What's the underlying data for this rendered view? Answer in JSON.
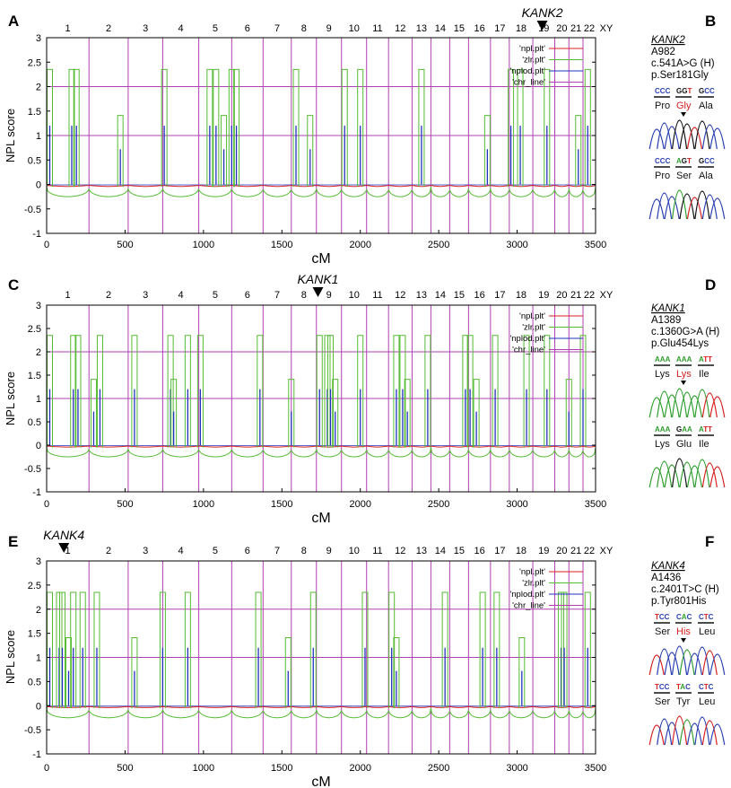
{
  "chart_data": [
    {
      "panel": "A",
      "type": "line",
      "title": "",
      "xlabel": "cM",
      "ylabel": "NPL score",
      "xlim": [
        0,
        3500
      ],
      "ylim": [
        -1,
        3
      ],
      "xticks": [
        "0",
        "500",
        "1000",
        "1500",
        "2000",
        "2500",
        "3000",
        "3500"
      ],
      "yticks": [
        "-1",
        "-0.5",
        "0",
        "0.5",
        "1",
        "1.5",
        "2",
        "2.5",
        "3"
      ],
      "chromosomes": [
        "1",
        "2",
        "3",
        "4",
        "5",
        "6",
        "7",
        "8",
        "9",
        "10",
        "11",
        "12",
        "13",
        "14",
        "15",
        "16",
        "17",
        "18",
        "19",
        "20",
        "21",
        "22",
        "XY"
      ],
      "chromosome_boundaries": [
        0,
        270,
        520,
        740,
        970,
        1180,
        1380,
        1560,
        1720,
        1880,
        2040,
        2180,
        2330,
        2450,
        2570,
        2690,
        2830,
        2950,
        3100,
        3240,
        3330,
        3420,
        3500
      ],
      "peaks": [
        20,
        160,
        190,
        470,
        750,
        1040,
        1080,
        1130,
        1180,
        1210,
        1590,
        1680,
        1900,
        2000,
        2390,
        2810,
        2960,
        3020,
        3190,
        3390,
        3450
      ],
      "peak_values": {
        "zlr": 2.35,
        "npl": 1.2
      },
      "marker": {
        "label": "KANK2",
        "x": 3160
      },
      "legend": [
        "'npl.plt'",
        "'zlr.plt'",
        "'nplod.plt'",
        "'chr_line'"
      ],
      "legend_position": "top-right"
    },
    {
      "panel": "C",
      "type": "line",
      "title": "",
      "xlabel": "cM",
      "ylabel": "NPL score",
      "xlim": [
        0,
        3500
      ],
      "ylim": [
        -1,
        3
      ],
      "xticks": [
        "0",
        "500",
        "1000",
        "1500",
        "2000",
        "2500",
        "3000",
        "3500"
      ],
      "yticks": [
        "-1",
        "-0.5",
        "0",
        "0.5",
        "1",
        "1.5",
        "2",
        "2.5",
        "3"
      ],
      "chromosomes": [
        "1",
        "2",
        "3",
        "4",
        "5",
        "6",
        "7",
        "8",
        "9",
        "10",
        "11",
        "12",
        "13",
        "14",
        "15",
        "16",
        "17",
        "18",
        "19",
        "20",
        "21",
        "22",
        "XY"
      ],
      "chromosome_boundaries": [
        0,
        270,
        520,
        740,
        970,
        1180,
        1380,
        1560,
        1720,
        1880,
        2040,
        2180,
        2330,
        2450,
        2570,
        2690,
        2830,
        2950,
        3100,
        3240,
        3330,
        3420,
        3500
      ],
      "peaks": [
        20,
        170,
        200,
        300,
        340,
        560,
        790,
        810,
        900,
        980,
        1360,
        1560,
        1740,
        1790,
        1810,
        1840,
        2000,
        2230,
        2270,
        2300,
        2430,
        2670,
        2700,
        2740,
        2860,
        3060,
        3190,
        3330,
        3420
      ],
      "peak_values": {
        "zlr": 2.35,
        "npl": 1.2
      },
      "marker": {
        "label": "KANK1",
        "x": 1730
      },
      "legend": [
        "'npl.plt'",
        "'zlr.plt'",
        "'nplod.plt'",
        "'chr_line'"
      ],
      "legend_position": "top-right"
    },
    {
      "panel": "E",
      "type": "line",
      "title": "",
      "xlabel": "cM",
      "ylabel": "NPL score",
      "xlim": [
        0,
        3500
      ],
      "ylim": [
        -1,
        3
      ],
      "xticks": [
        "0",
        "500",
        "1000",
        "1500",
        "2000",
        "2500",
        "3000",
        "3500"
      ],
      "yticks": [
        "-1",
        "-0.5",
        "0",
        "0.5",
        "1",
        "1.5",
        "2",
        "2.5",
        "3"
      ],
      "chromosomes": [
        "1",
        "2",
        "3",
        "4",
        "5",
        "6",
        "7",
        "8",
        "9",
        "10",
        "11",
        "12",
        "13",
        "14",
        "15",
        "16",
        "17",
        "18",
        "19",
        "20",
        "21",
        "22",
        "XY"
      ],
      "chromosome_boundaries": [
        0,
        270,
        520,
        740,
        970,
        1180,
        1380,
        1560,
        1720,
        1880,
        2040,
        2180,
        2330,
        2450,
        2570,
        2690,
        2830,
        2950,
        3100,
        3240,
        3330,
        3420,
        3500
      ],
      "peaks": [
        20,
        80,
        100,
        140,
        170,
        230,
        320,
        560,
        740,
        900,
        1350,
        1540,
        1700,
        2030,
        2200,
        2230,
        2540,
        2780,
        2870,
        3030,
        3280,
        3300,
        3450
      ],
      "peak_values": {
        "zlr": 2.35,
        "npl": 1.2
      },
      "marker": {
        "label": "KANK4",
        "x": 110
      },
      "legend": [
        "'npl.plt'",
        "'zlr.plt'",
        "'nplod.plt'",
        "'chr_line'"
      ],
      "legend_position": "top-right"
    }
  ],
  "mutations": [
    {
      "panel": "B",
      "gene": "KANK2",
      "family": "A982",
      "cdna": "c.541A>G (H)",
      "protein": "p.Ser181Gly",
      "mutant": {
        "codons": [
          "CCC",
          "GGT",
          "GCC"
        ],
        "aminoacids": [
          "Pro",
          "Gly",
          "Ala"
        ],
        "mutated_index": 1
      },
      "normal": {
        "codons": [
          "CCC",
          "AGT",
          "GCC"
        ],
        "aminoacids": [
          "Pro",
          "Ser",
          "Ala"
        ]
      }
    },
    {
      "panel": "D",
      "gene": "KANK1",
      "family": "A1389",
      "cdna": "c.1360G>A (H)",
      "protein": "p.Glu454Lys",
      "mutant": {
        "codons": [
          "AAA",
          "AAA",
          "ATT"
        ],
        "aminoacids": [
          "Lys",
          "Lys",
          "Ile"
        ],
        "mutated_index": 1
      },
      "normal": {
        "codons": [
          "AAA",
          "GAA",
          "ATT"
        ],
        "aminoacids": [
          "Lys",
          "Glu",
          "Ile"
        ]
      }
    },
    {
      "panel": "F",
      "gene": "KANK4",
      "family": "A1436",
      "cdna": "c.2401T>C (H)",
      "protein": "p.Tyr801His",
      "mutant": {
        "codons": [
          "TCC",
          "CAC",
          "CTC"
        ],
        "aminoacids": [
          "Ser",
          "His",
          "Leu"
        ],
        "mutated_index": 1
      },
      "normal": {
        "codons": [
          "TCC",
          "TAC",
          "CTC"
        ],
        "aminoacids": [
          "Ser",
          "Tyr",
          "Leu"
        ]
      }
    }
  ],
  "colors": {
    "npl": "#dd2222",
    "zlr": "#55bb33",
    "nplod": "#2233bb",
    "chr_line": "#b040b0",
    "grid": "#b040b0",
    "mutated_aa": "#d42020",
    "base_A": "#2f9e2f",
    "base_C": "#2a3fb0",
    "base_G": "#111111",
    "base_T": "#d42020"
  }
}
